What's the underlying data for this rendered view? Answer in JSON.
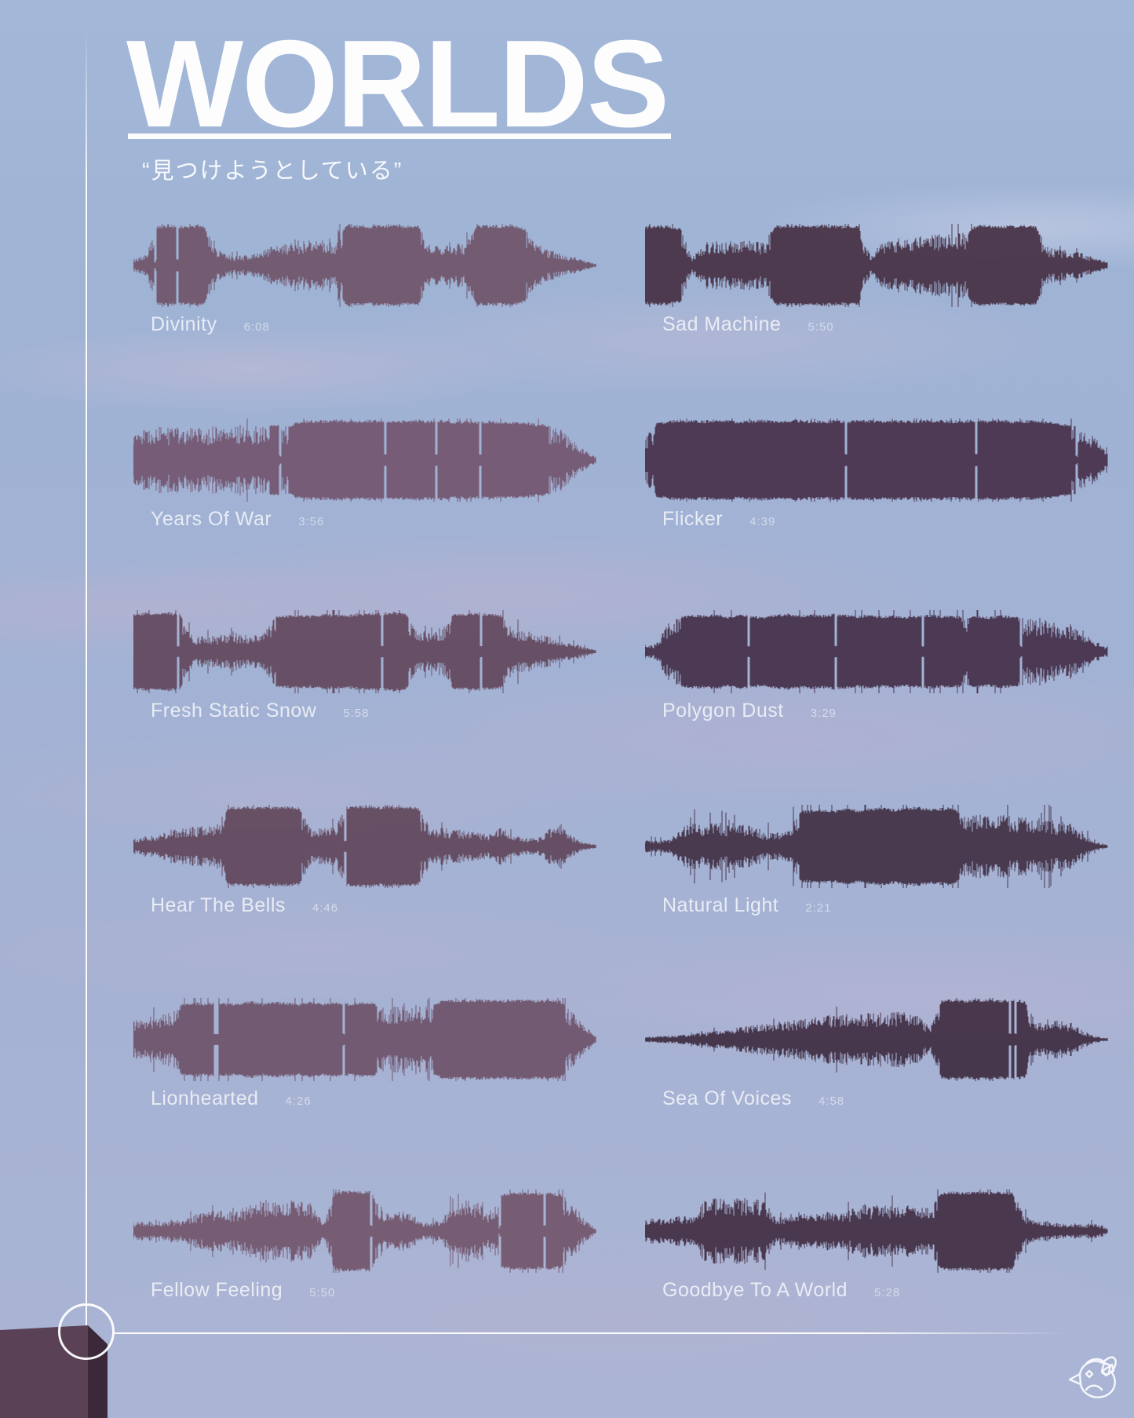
{
  "poster": {
    "title": "WORLDS",
    "subtitle": "“見つけようとしている”",
    "colors": {
      "sky_top": "#a3b7d8",
      "sky_bottom": "#aab5d5",
      "cloud": "#beb0d0",
      "line_white": "#fdfdfe",
      "building_left_face": "#5a4156",
      "building_right_face": "#3b2839"
    },
    "logo_icon": "bird-with-headphones-icon"
  },
  "tracks": [
    {
      "name": "Divinity",
      "duration": "6:08",
      "column": 0,
      "row": 0,
      "color": "#6b4b60",
      "opacity": 0.85,
      "spikiness": 0.45,
      "envelope": [
        15,
        25,
        95,
        98,
        96,
        97,
        95,
        40,
        25,
        24,
        26,
        40,
        48,
        55,
        60,
        62,
        60,
        58,
        98,
        97,
        96,
        97,
        98,
        96,
        97,
        50,
        48,
        52,
        55,
        97,
        98,
        97,
        98,
        90,
        55,
        40,
        30,
        22,
        12,
        4
      ]
    },
    {
      "name": "Sad Machine",
      "duration": "5:50",
      "column": 1,
      "row": 0,
      "color": "#463043",
      "opacity": 0.92,
      "spikiness": 0.4,
      "envelope": [
        95,
        97,
        96,
        90,
        20,
        55,
        60,
        58,
        62,
        60,
        57,
        96,
        98,
        97,
        96,
        98,
        97,
        96,
        95,
        25,
        55,
        60,
        65,
        70,
        72,
        75,
        78,
        80,
        97,
        98,
        96,
        97,
        98,
        95,
        45,
        40,
        35,
        30,
        18,
        8
      ]
    },
    {
      "name": "Years Of War",
      "duration": "3:56",
      "column": 0,
      "row": 1,
      "color": "#6e4c65",
      "opacity": 0.85,
      "spikiness": 0.35,
      "envelope": [
        60,
        75,
        80,
        78,
        82,
        80,
        78,
        83,
        80,
        85,
        82,
        84,
        86,
        83,
        95,
        97,
        96,
        98,
        97,
        96,
        98,
        97,
        96,
        97,
        98,
        96,
        97,
        94,
        95,
        93,
        95,
        94,
        92,
        93,
        88,
        85,
        80,
        50,
        25,
        8
      ]
    },
    {
      "name": "Flicker",
      "duration": "4:39",
      "column": 1,
      "row": 1,
      "color": "#46304a",
      "opacity": 0.92,
      "spikiness": 0.35,
      "envelope": [
        55,
        90,
        96,
        98,
        97,
        96,
        98,
        97,
        95,
        97,
        98,
        96,
        97,
        98,
        96,
        95,
        97,
        96,
        98,
        97,
        96,
        97,
        95,
        96,
        98,
        97,
        96,
        97,
        98,
        96,
        97,
        95,
        96,
        97,
        94,
        90,
        85,
        80,
        55,
        20
      ]
    },
    {
      "name": "Fresh Static Snow",
      "duration": "5:58",
      "column": 0,
      "row": 2,
      "color": "#5e4257",
      "opacity": 0.88,
      "spikiness": 0.55,
      "envelope": [
        90,
        95,
        93,
        96,
        92,
        35,
        40,
        38,
        45,
        42,
        40,
        44,
        85,
        88,
        90,
        87,
        92,
        90,
        88,
        93,
        95,
        94,
        96,
        93,
        55,
        50,
        52,
        90,
        93,
        95,
        92,
        90,
        60,
        50,
        45,
        38,
        30,
        22,
        12,
        5
      ]
    },
    {
      "name": "Polygon Dust",
      "duration": "3:29",
      "column": 1,
      "row": 2,
      "color": "#443049",
      "opacity": 0.92,
      "spikiness": 0.6,
      "envelope": [
        12,
        20,
        75,
        85,
        90,
        88,
        92,
        86,
        90,
        88,
        85,
        90,
        92,
        88,
        91,
        89,
        92,
        90,
        87,
        90,
        86,
        88,
        85,
        87,
        90,
        86,
        88,
        84,
        87,
        85,
        88,
        86,
        84,
        82,
        80,
        70,
        60,
        45,
        25,
        10
      ]
    },
    {
      "name": "Hear The Bells",
      "duration": "4:46",
      "column": 0,
      "row": 3,
      "color": "#5d4154",
      "opacity": 0.88,
      "spikiness": 0.5,
      "envelope": [
        18,
        22,
        28,
        40,
        45,
        50,
        48,
        52,
        95,
        97,
        96,
        98,
        96,
        97,
        95,
        45,
        42,
        48,
        96,
        98,
        97,
        96,
        98,
        97,
        95,
        50,
        45,
        42,
        38,
        35,
        30,
        45,
        28,
        22,
        18,
        40,
        60,
        25,
        10,
        4
      ]
    },
    {
      "name": "Natural Light",
      "duration": "2:21",
      "column": 1,
      "row": 3,
      "color": "#413044",
      "opacity": 0.92,
      "spikiness": 1.0,
      "envelope": [
        15,
        14,
        16,
        45,
        55,
        50,
        60,
        52,
        58,
        48,
        35,
        32,
        38,
        85,
        88,
        90,
        87,
        92,
        88,
        92,
        95,
        90,
        94,
        96,
        91,
        93,
        95,
        75,
        78,
        72,
        76,
        74,
        70,
        72,
        65,
        60,
        55,
        30,
        12,
        4
      ]
    },
    {
      "name": "Lionhearted",
      "duration": "4:26",
      "column": 0,
      "row": 4,
      "color": "#6a4a61",
      "opacity": 0.85,
      "spikiness": 0.45,
      "envelope": [
        45,
        55,
        60,
        65,
        85,
        90,
        88,
        92,
        87,
        90,
        93,
        88,
        91,
        90,
        87,
        92,
        89,
        91,
        88,
        90,
        92,
        80,
        82,
        78,
        84,
        80,
        95,
        97,
        96,
        98,
        97,
        96,
        98,
        97,
        96,
        97,
        95,
        70,
        35,
        10
      ]
    },
    {
      "name": "Sea Of Voices",
      "duration": "4:58",
      "column": 1,
      "row": 4,
      "color": "#3f2c41",
      "opacity": 0.92,
      "spikiness": 0.4,
      "envelope": [
        6,
        8,
        10,
        12,
        15,
        18,
        22,
        26,
        30,
        34,
        38,
        42,
        46,
        50,
        54,
        57,
        60,
        62,
        65,
        63,
        66,
        68,
        65,
        62,
        30,
        95,
        97,
        96,
        98,
        97,
        96,
        97,
        95,
        40,
        50,
        45,
        40,
        20,
        8,
        3
      ]
    },
    {
      "name": "Fellow Feeling",
      "duration": "5:50",
      "column": 0,
      "row": 5,
      "color": "#6d4d63",
      "opacity": 0.85,
      "spikiness": 0.5,
      "envelope": [
        20,
        25,
        22,
        26,
        24,
        40,
        45,
        50,
        48,
        52,
        70,
        75,
        78,
        74,
        77,
        72,
        25,
        95,
        98,
        96,
        97,
        50,
        45,
        48,
        25,
        22,
        28,
        70,
        74,
        72,
        40,
        90,
        93,
        95,
        92,
        94,
        90,
        70,
        30,
        5
      ]
    },
    {
      "name": "Goodbye To A World",
      "duration": "5:28",
      "column": 1,
      "row": 5,
      "color": "#422e43",
      "opacity": 0.92,
      "spikiness": 0.55,
      "envelope": [
        30,
        35,
        32,
        38,
        34,
        75,
        80,
        78,
        82,
        79,
        76,
        30,
        40,
        45,
        42,
        48,
        44,
        46,
        62,
        65,
        63,
        66,
        64,
        55,
        58,
        93,
        96,
        94,
        97,
        95,
        96,
        93,
        40,
        30,
        25,
        18,
        16,
        17,
        20,
        6
      ]
    }
  ],
  "layout_note": ""
}
